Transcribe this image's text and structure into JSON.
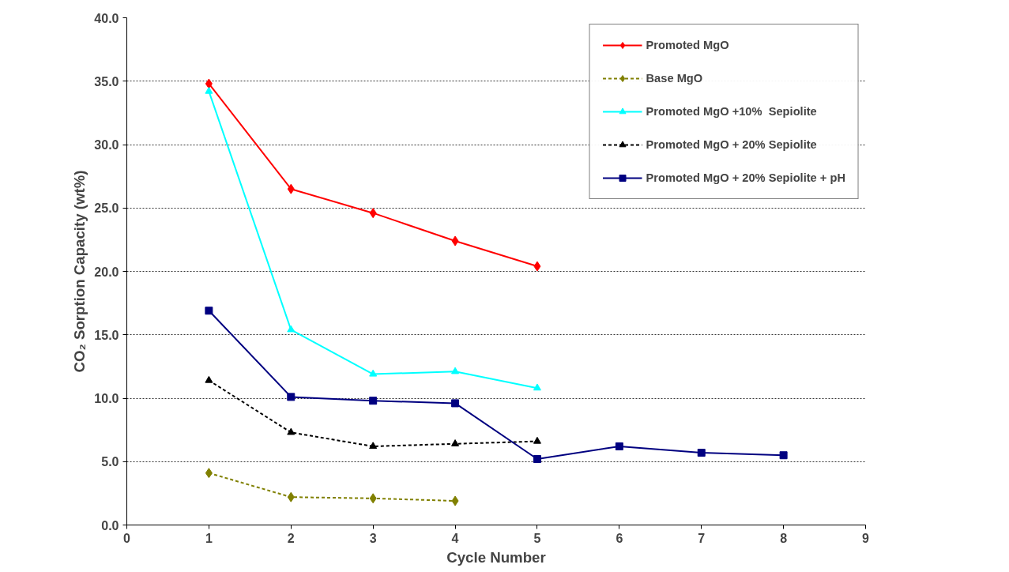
{
  "chart_data": {
    "type": "line",
    "xlabel": "Cycle Number",
    "ylabel": "CO₂ Sorption Capacity (wt%)",
    "xlim": [
      0,
      9
    ],
    "xticks": [
      0,
      1,
      2,
      3,
      4,
      5,
      6,
      7,
      8,
      9
    ],
    "ylim": [
      0,
      40
    ],
    "yticks": [
      {
        "value": 0,
        "label": "0.0"
      },
      {
        "value": 5,
        "label": "5.0"
      },
      {
        "value": 10,
        "label": "10.0"
      },
      {
        "value": 15,
        "label": "15.0"
      },
      {
        "value": 20,
        "label": "20.0"
      },
      {
        "value": 25,
        "label": "25.0"
      },
      {
        "value": 30,
        "label": "30.0"
      },
      {
        "value": 35,
        "label": "35.0"
      },
      {
        "value": 40,
        "label": "40.0"
      }
    ],
    "grid": "y",
    "legend": "top right",
    "series": [
      {
        "name": "Promoted MgO",
        "color": "#ff0000",
        "marker": "diamond",
        "line_style": "solid",
        "x": [
          1,
          2,
          3,
          4,
          5
        ],
        "values": [
          34.8,
          26.5,
          24.6,
          22.4,
          20.4
        ]
      },
      {
        "name": "Base MgO",
        "color": "#808000",
        "marker": "diamond",
        "line_style": "dashed",
        "x": [
          1,
          2,
          3,
          4
        ],
        "values": [
          4.1,
          2.2,
          2.1,
          1.9
        ]
      },
      {
        "name": "Promoted MgO +10%  Sepiolite",
        "color": "#00ffff",
        "marker": "triangle",
        "line_style": "solid",
        "x": [
          1,
          2,
          3,
          4,
          5
        ],
        "values": [
          34.2,
          15.4,
          11.9,
          12.1,
          10.8
        ]
      },
      {
        "name": "Promoted MgO + 20% Sepiolite",
        "color": "#000000",
        "marker": "triangle",
        "line_style": "dashed",
        "x": [
          1,
          2,
          3,
          4,
          5
        ],
        "values": [
          11.4,
          7.3,
          6.2,
          6.4,
          6.6
        ]
      },
      {
        "name": "Promoted MgO + 20% Sepiolite + pH",
        "color": "#000080",
        "marker": "square",
        "line_style": "solid",
        "x": [
          1,
          2,
          3,
          4,
          5,
          6,
          7,
          8
        ],
        "values": [
          16.9,
          10.1,
          9.8,
          9.6,
          5.2,
          6.2,
          5.7,
          5.5
        ]
      }
    ]
  }
}
